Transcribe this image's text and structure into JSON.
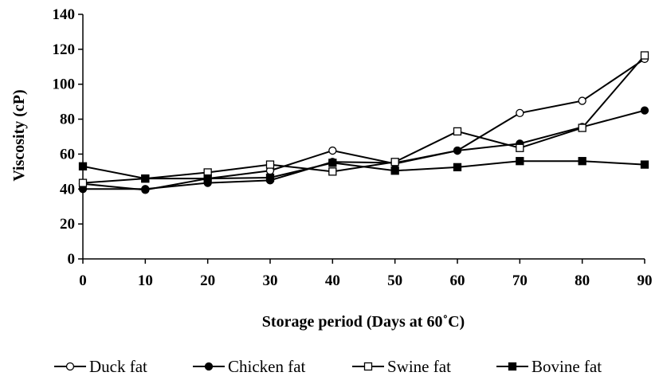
{
  "chart_data": {
    "type": "line",
    "title": "",
    "xlabel": "Storage period (Days at 60˚C)",
    "ylabel": "Viscosity (cP)",
    "x": [
      0,
      10,
      20,
      30,
      40,
      50,
      60,
      70,
      80,
      90
    ],
    "xlim": [
      0,
      90
    ],
    "ylim": [
      0,
      140
    ],
    "xticks": [
      0,
      10,
      20,
      30,
      40,
      50,
      60,
      70,
      80,
      90
    ],
    "yticks": [
      0,
      20,
      40,
      60,
      80,
      100,
      120,
      140
    ],
    "grid": false,
    "legend": "bottom",
    "series": [
      {
        "name": "Duck fat",
        "marker": "circle-open",
        "values": [
          43,
          39.5,
          46,
          50.5,
          62,
          54.5,
          62,
          83.5,
          90.5,
          114.5
        ]
      },
      {
        "name": "Chicken fat",
        "marker": "circle-filled",
        "values": [
          40,
          40,
          43.5,
          45,
          55.5,
          55,
          62,
          66,
          75.5,
          85
        ]
      },
      {
        "name": "Swine fat",
        "marker": "square-open",
        "values": [
          43.5,
          46,
          49.5,
          54,
          50,
          55.5,
          73,
          63.5,
          75,
          116.5
        ]
      },
      {
        "name": "Bovine fat",
        "marker": "square-filled",
        "values": [
          53,
          46,
          46,
          46.5,
          55,
          50.5,
          52.5,
          56,
          56,
          54
        ]
      }
    ]
  }
}
